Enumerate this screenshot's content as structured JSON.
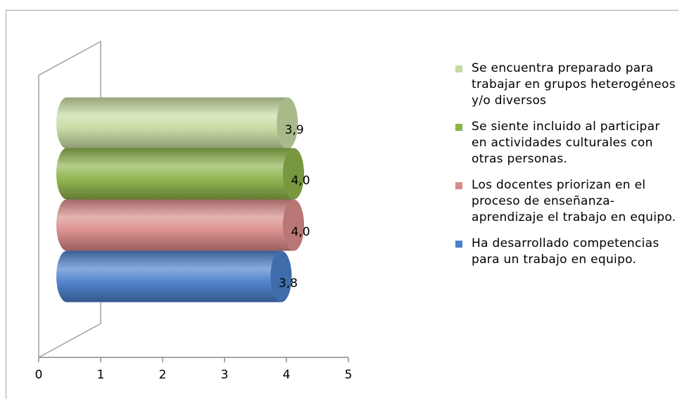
{
  "chart_data": {
    "type": "bar",
    "orientation": "horizontal",
    "style": "3d-cylinder",
    "xlim": [
      0,
      5
    ],
    "x_ticks": [
      "0",
      "1",
      "2",
      "3",
      "4",
      "5"
    ],
    "series": [
      {
        "name": "Ha desarrollado competencias para un trabajo en equipo.",
        "value": 3.8,
        "label": "3,8",
        "color": "#4a7fc9"
      },
      {
        "name": "Los docentes priorizan en el proceso de enseñanza-aprendizaje el trabajo en equipo.",
        "value": 4.0,
        "label": "4,0",
        "color": "#d98b89"
      },
      {
        "name": "Se siente incluido al participar en actividades culturales con otras personas.",
        "value": 4.0,
        "label": "4,0",
        "color": "#8db24a"
      },
      {
        "name": "Se encuentra preparado para trabajar en grupos heterogéneos y/o diversos",
        "value": 3.9,
        "label": "3,9",
        "color": "#c6dba1"
      }
    ],
    "legend_position": "right",
    "grid": false
  }
}
